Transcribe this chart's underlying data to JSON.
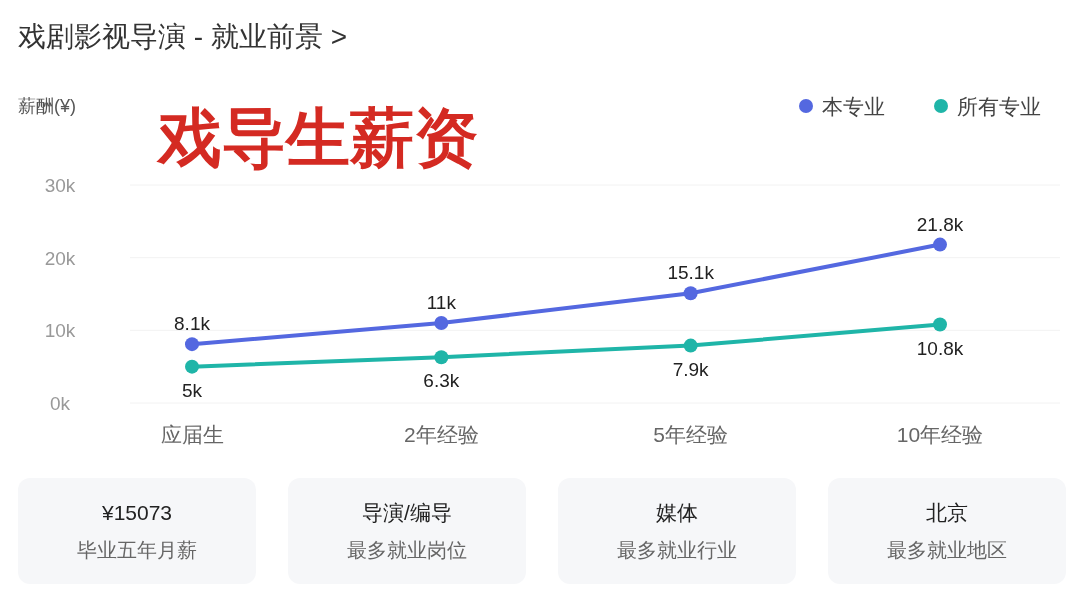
{
  "chart_data": [
    {
      "type": "line",
      "title": "戏剧影视导演 - 就业前景 >",
      "subtitle": "戏导生薪资",
      "ylabel": "薪酬(¥)",
      "categories": [
        "应届生",
        "2年经验",
        "5年经验",
        "10年经验"
      ],
      "series": [
        {
          "name": "本专业",
          "color": "#5468e0",
          "values": [
            8100,
            11000,
            15100,
            21800
          ],
          "value_labels": [
            "8.1k",
            "11k",
            "15.1k",
            "21.8k"
          ]
        },
        {
          "name": "所有专业",
          "color": "#1fb5a8",
          "values": [
            5000,
            6300,
            7900,
            10800
          ],
          "value_labels": [
            "5k",
            "6.3k",
            "7.9k",
            "10.8k"
          ]
        }
      ],
      "ylim": [
        0,
        30000
      ],
      "yticks": [
        {
          "value": 0,
          "label": "0k"
        },
        {
          "value": 10000,
          "label": "10k"
        },
        {
          "value": 20000,
          "label": "20k"
        },
        {
          "value": 30000,
          "label": "30k"
        }
      ],
      "grid": "y",
      "legend": "top right",
      "marker": "circle",
      "line_style": "solid"
    },
    {
      "type": "other",
      "annotations": [
        "¥15073",
        "毕业五年月薪",
        "导演/编导",
        "最多就业岗位",
        "媒体",
        "最多就业行业",
        "北京",
        "最多就业地区"
      ]
    }
  ]
}
